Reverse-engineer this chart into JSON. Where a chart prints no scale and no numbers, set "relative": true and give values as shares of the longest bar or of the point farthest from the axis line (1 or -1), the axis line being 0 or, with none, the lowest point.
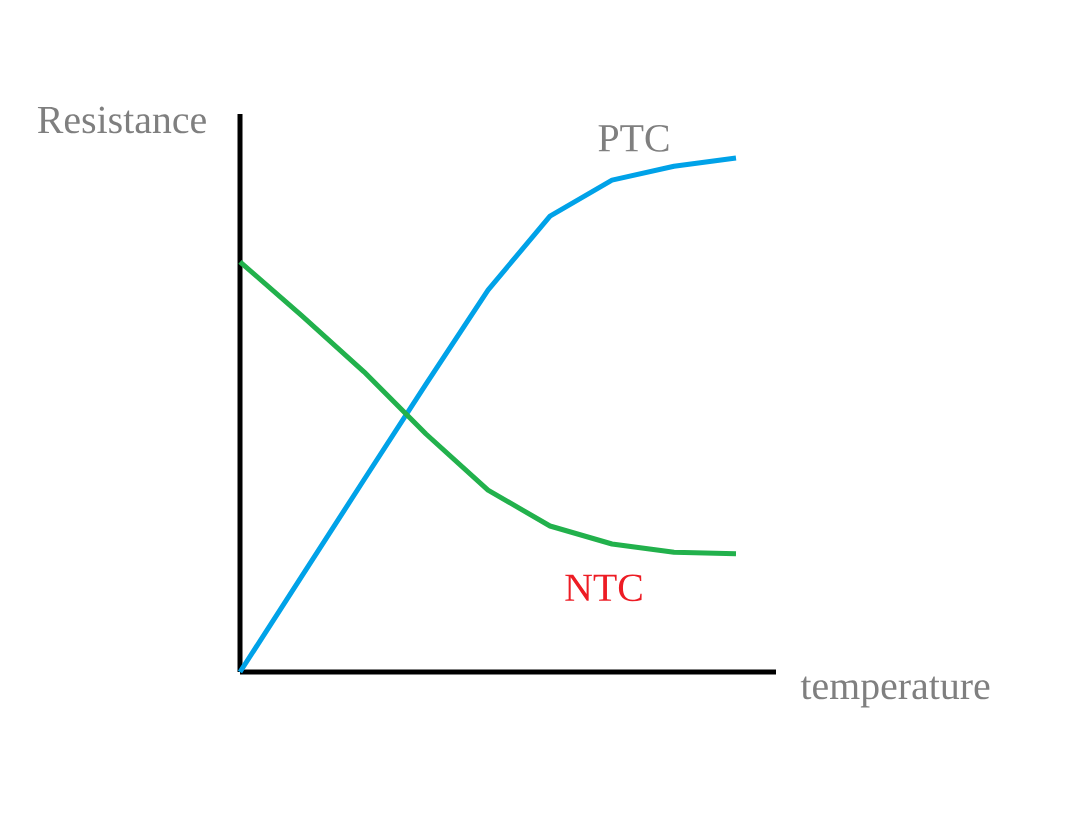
{
  "chart_data": {
    "type": "line",
    "relative": true,
    "xlabel": "temperature",
    "ylabel": "Resistance",
    "categories": [
      null,
      null,
      null,
      null,
      null,
      null,
      null,
      null,
      null
    ],
    "series": [
      {
        "name": "PTC",
        "color": "#00a2e8",
        "values": [
          0,
          0.187,
          0.374,
          0.56,
          0.743,
          0.887,
          0.957,
          0.984,
          1
        ]
      },
      {
        "name": "NTC",
        "color": "#22b14c",
        "values": [
          0.798,
          0.693,
          0.584,
          0.463,
          0.354,
          0.284,
          0.249,
          0.233,
          0.23
        ]
      }
    ]
  }
}
